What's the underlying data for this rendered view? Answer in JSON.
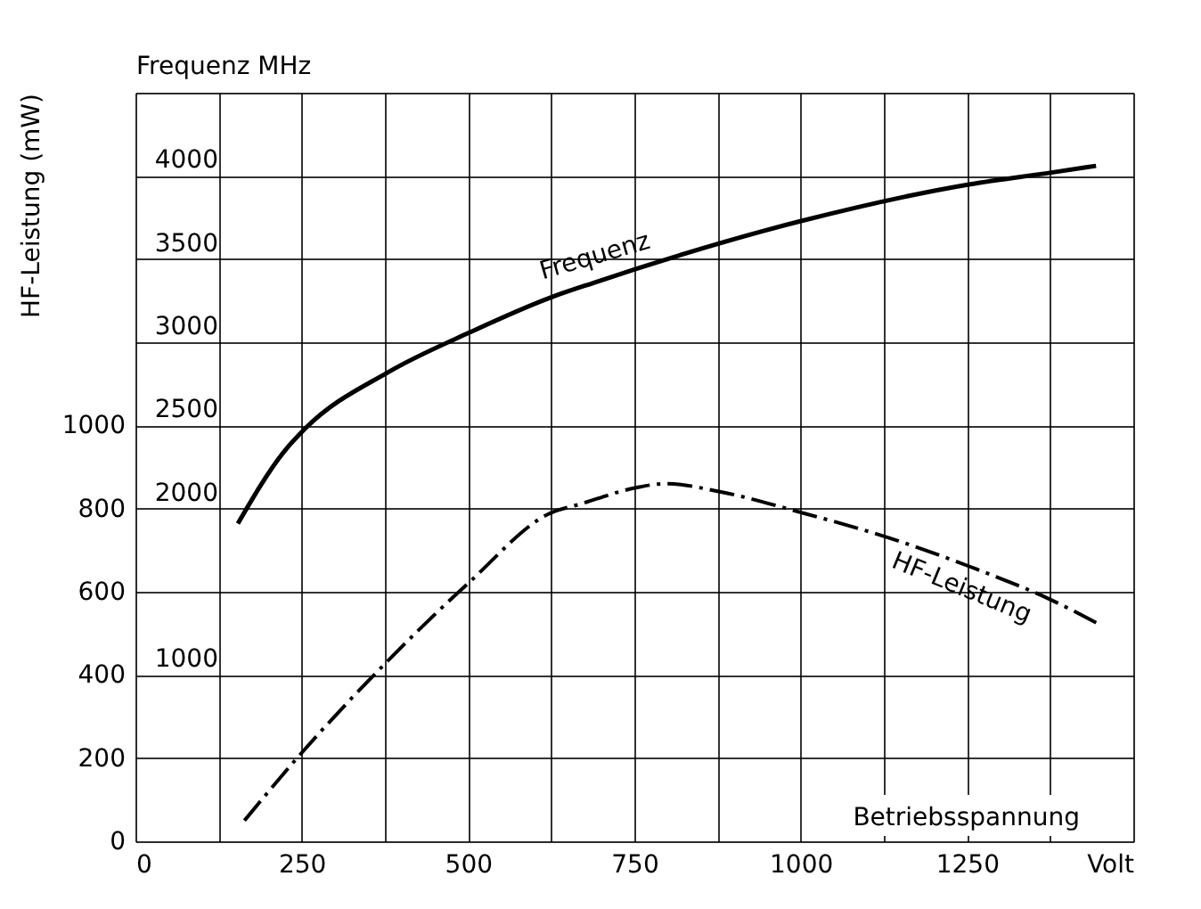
{
  "chart_data": {
    "type": "line",
    "xlabel": "Betriebsspannung",
    "ylabel": "HF-Leistung (mW)",
    "y2label": "Frequenz MHz",
    "xlim": [
      0,
      1500
    ],
    "xticks": [
      0,
      {
        "value": 125,
        "label": null
      },
      250,
      {
        "value": 375,
        "label": null
      },
      500,
      {
        "value": 625,
        "label": null
      },
      750,
      {
        "value": 875,
        "label": null
      },
      1000,
      {
        "value": 1125,
        "label": null
      },
      1250,
      {
        "value": 1375,
        "label": null
      },
      {
        "value": 1500,
        "label": "Volt"
      }
    ],
    "ylim": [
      0,
      1800
    ],
    "yticks": [
      0,
      200,
      400,
      600,
      800,
      1000,
      {
        "value": 1200,
        "label": null
      },
      {
        "value": 1400,
        "label": null
      },
      {
        "value": 1600,
        "label": null
      },
      {
        "value": 1800,
        "label": null
      }
    ],
    "y2lim": [
      0,
      4500
    ],
    "y2ticks": [
      1000,
      2000,
      2500,
      3000,
      3500,
      4000
    ],
    "grid": true,
    "series": [
      {
        "name": "Frequenz",
        "color": "#000000",
        "axis": "y2",
        "line_style": "solid",
        "x": [
          154,
          225,
          255,
          380,
          503,
          625,
          691,
          752,
          1002,
          1255,
          1377,
          1444
        ],
        "values": [
          1910,
          2350,
          2480,
          2820,
          3060,
          3270,
          3360,
          3440,
          3730,
          3950,
          4020,
          4060
        ]
      },
      {
        "name": "HF-Leistung",
        "color": "#000000",
        "axis": "y",
        "line_style": "dashed",
        "x": [
          164,
          243,
          377,
          500,
          625,
          667,
          752,
          797,
          880,
          1002,
          1132,
          1255,
          1377,
          1451
        ],
        "values": [
          50,
          200,
          430,
          620,
          790,
          810,
          850,
          860,
          840,
          790,
          730,
          660,
          580,
          520
        ]
      }
    ]
  }
}
